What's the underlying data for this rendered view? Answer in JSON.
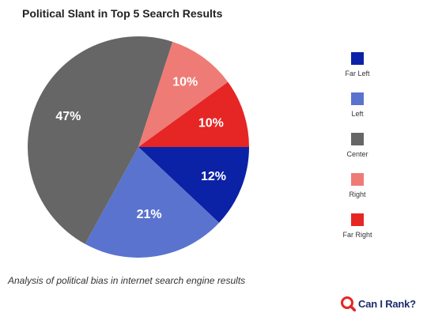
{
  "colors": {
    "far_left": "#0b22a6",
    "left": "#5a73cf",
    "center": "#666666",
    "right": "#ee7b76",
    "far_right": "#e52624",
    "brand": "#1c2d6b",
    "brand_icon": "#e52624"
  },
  "chart_data": {
    "type": "pie",
    "title": "Political Slant in Top 5 Search Results",
    "slices": [
      {
        "name": "Far Left",
        "value": 12,
        "label": "12%"
      },
      {
        "name": "Left",
        "value": 21,
        "label": "21%"
      },
      {
        "name": "Center",
        "value": 47,
        "label": "47%"
      },
      {
        "name": "Right",
        "value": 10,
        "label": "10%"
      },
      {
        "name": "Far Right",
        "value": 10,
        "label": "10%"
      }
    ],
    "legend_placement": "right"
  },
  "legend": [
    {
      "label": "Far Left",
      "color": "#0b22a6"
    },
    {
      "label": "Left",
      "color": "#5a73cf"
    },
    {
      "label": "Center",
      "color": "#666666"
    },
    {
      "label": "Right",
      "color": "#ee7b76"
    },
    {
      "label": "Far Right",
      "color": "#e52624"
    }
  ],
  "caption": "Analysis of political bias in internet search engine results",
  "brand": {
    "text": "Can I Rank?",
    "icon": "magnifier-logo-icon"
  }
}
